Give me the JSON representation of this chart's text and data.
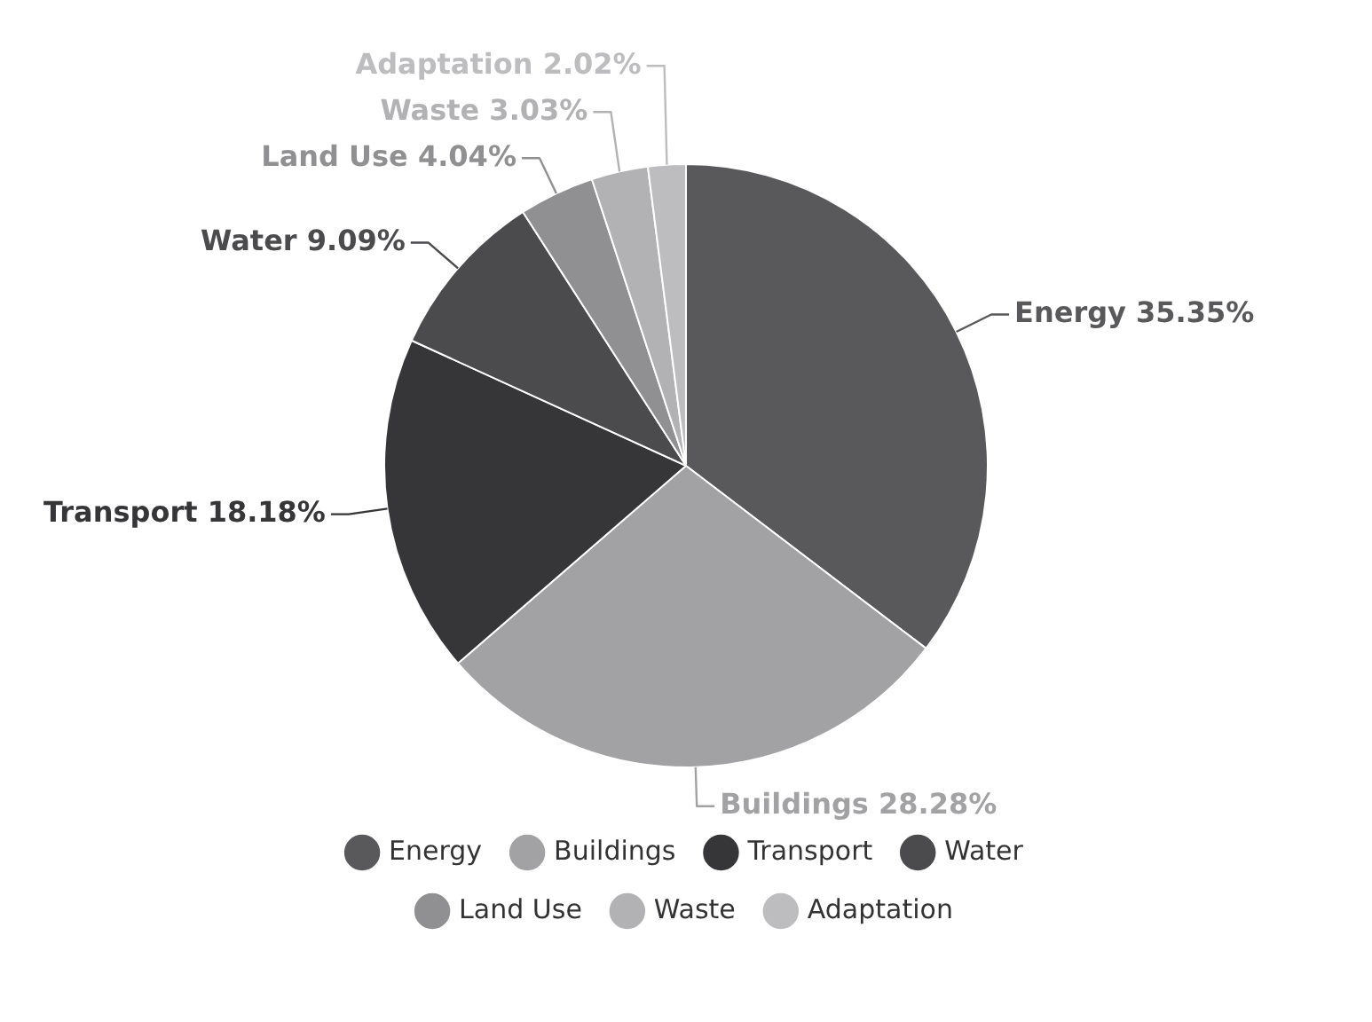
{
  "chart_data": {
    "type": "pie",
    "categories": [
      "Energy",
      "Buildings",
      "Transport",
      "Water",
      "Land Use",
      "Waste",
      "Adaptation"
    ],
    "values": [
      35.35,
      28.28,
      18.18,
      9.09,
      4.04,
      3.03,
      2.02
    ],
    "value_labels": [
      "35.35%",
      "28.28%",
      "18.18%",
      "9.09%",
      "4.04%",
      "3.03%",
      "2.02%"
    ],
    "colors": [
      "#59595b",
      "#a2a2a4",
      "#363638",
      "#4b4b4d",
      "#909092",
      "#b2b2b4",
      "#bdbdbf"
    ],
    "legend": "bottom"
  }
}
